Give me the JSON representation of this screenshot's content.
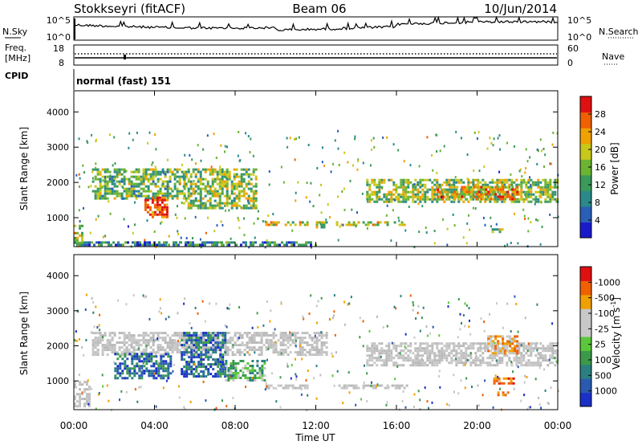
{
  "header": {
    "station": "Stokkseyri (fitACF)",
    "beam": "Beam 06",
    "date": "10/Jun/2014"
  },
  "noise_panel": {
    "left_label": "N.Sky",
    "right_label": "N.Search",
    "ticks_left": [
      "10^5",
      "10^0"
    ],
    "ticks_right": [
      "10^5",
      "10^0"
    ]
  },
  "freq_panel": {
    "left_label_1": "Freq.",
    "left_label_2": "[MHz]",
    "right_label": "Nave",
    "ticks_left": [
      "18",
      "8"
    ],
    "ticks_right": [
      "60",
      "0"
    ]
  },
  "cpid": {
    "label": "CPID",
    "mode": "normal (fast) 151"
  },
  "chart_data": [
    {
      "type": "heatmap",
      "name": "power",
      "ylabel": "Slant Range [km]",
      "ylim": [
        180,
        4600
      ],
      "y_ticks": [
        1000,
        2000,
        3000,
        4000
      ],
      "colorbar": {
        "label": "Power [dB]",
        "ticks": [
          "4",
          "8",
          "12",
          "16",
          "20",
          "24",
          "28"
        ],
        "colors": [
          "#1a1acc",
          "#2a5fb8",
          "#2a8a8a",
          "#3a9a5a",
          "#6ab432",
          "#c8c81a",
          "#f0a000",
          "#f06000",
          "#e01010"
        ]
      },
      "regions": [
        {
          "t0": 0.9,
          "t1": 5.5,
          "r0": 1550,
          "r1": 2400,
          "level": 0.45
        },
        {
          "t0": 3.5,
          "t1": 4.6,
          "r0": 1000,
          "r1": 1600,
          "level": 0.9
        },
        {
          "t0": 5.4,
          "t1": 9.0,
          "r0": 1300,
          "r1": 2400,
          "level": 0.5
        },
        {
          "t0": 9.5,
          "t1": 11.6,
          "r0": 780,
          "r1": 900,
          "level": 0.55
        },
        {
          "t0": 12.0,
          "t1": 12.5,
          "r0": 760,
          "r1": 900,
          "level": 0.5
        },
        {
          "t0": 13.0,
          "t1": 16.5,
          "r0": 780,
          "r1": 900,
          "level": 0.55
        },
        {
          "t0": 14.5,
          "t1": 24.0,
          "r0": 1450,
          "r1": 2100,
          "level": 0.5
        },
        {
          "t0": 18.0,
          "t1": 22.0,
          "r0": 1500,
          "r1": 1900,
          "level": 0.7
        },
        {
          "t0": 0.0,
          "t1": 0.4,
          "r0": 300,
          "r1": 800,
          "level": 0.6
        },
        {
          "t0": 0.0,
          "t1": 12.0,
          "r0": 200,
          "r1": 330,
          "level": 0.3
        },
        {
          "t0": 20.6,
          "t1": 21.2,
          "r0": 600,
          "r1": 700,
          "level": 0.5
        }
      ]
    },
    {
      "type": "heatmap",
      "name": "velocity",
      "ylabel": "Slant Range [km]",
      "ylim": [
        180,
        4600
      ],
      "y_ticks": [
        1000,
        2000,
        3000,
        4000
      ],
      "colorbar": {
        "label": "Velocity [m s",
        "label_sup": "-1",
        "label_end": "]",
        "ticks": [
          "1000",
          "500",
          "100",
          "25",
          "-25",
          "-100",
          "-500",
          "-1000"
        ],
        "colors": [
          "#1a30c8",
          "#2a5ab0",
          "#2a8080",
          "#3a9a4a",
          "#5ac83a",
          "#c8c8c8",
          "#c8c8c8",
          "#f0a000",
          "#f06000",
          "#e01010"
        ]
      },
      "regions": [
        {
          "t0": 0.9,
          "t1": 12.5,
          "r0": 1750,
          "r1": 2400,
          "vel": "gray"
        },
        {
          "t0": 2.0,
          "t1": 4.8,
          "r0": 1100,
          "r1": 1800,
          "vel": "blue"
        },
        {
          "t0": 5.3,
          "t1": 7.5,
          "r0": 1100,
          "r1": 2400,
          "vel": "blue"
        },
        {
          "t0": 7.5,
          "t1": 9.5,
          "r0": 1000,
          "r1": 1600,
          "vel": "green"
        },
        {
          "t0": 9.5,
          "t1": 11.6,
          "r0": 780,
          "r1": 900,
          "vel": "gray"
        },
        {
          "t0": 13.0,
          "t1": 16.5,
          "r0": 780,
          "r1": 900,
          "vel": "gray"
        },
        {
          "t0": 14.5,
          "t1": 24.0,
          "r0": 1450,
          "r1": 2100,
          "vel": "gray"
        },
        {
          "t0": 20.8,
          "t1": 21.8,
          "r0": 900,
          "r1": 1100,
          "vel": "red"
        },
        {
          "t0": 20.5,
          "t1": 22.0,
          "r0": 1800,
          "r1": 2300,
          "vel": "orange"
        },
        {
          "t0": 0.0,
          "t1": 0.8,
          "r0": 300,
          "r1": 1000,
          "vel": "gray"
        },
        {
          "t0": 21.0,
          "t1": 21.6,
          "r0": 580,
          "r1": 700,
          "vel": "orange"
        }
      ]
    }
  ],
  "time_axis": {
    "label": "Time UT",
    "ticks": [
      "00:00",
      "04:00",
      "08:00",
      "12:00",
      "16:00",
      "20:00",
      "00:00"
    ]
  }
}
